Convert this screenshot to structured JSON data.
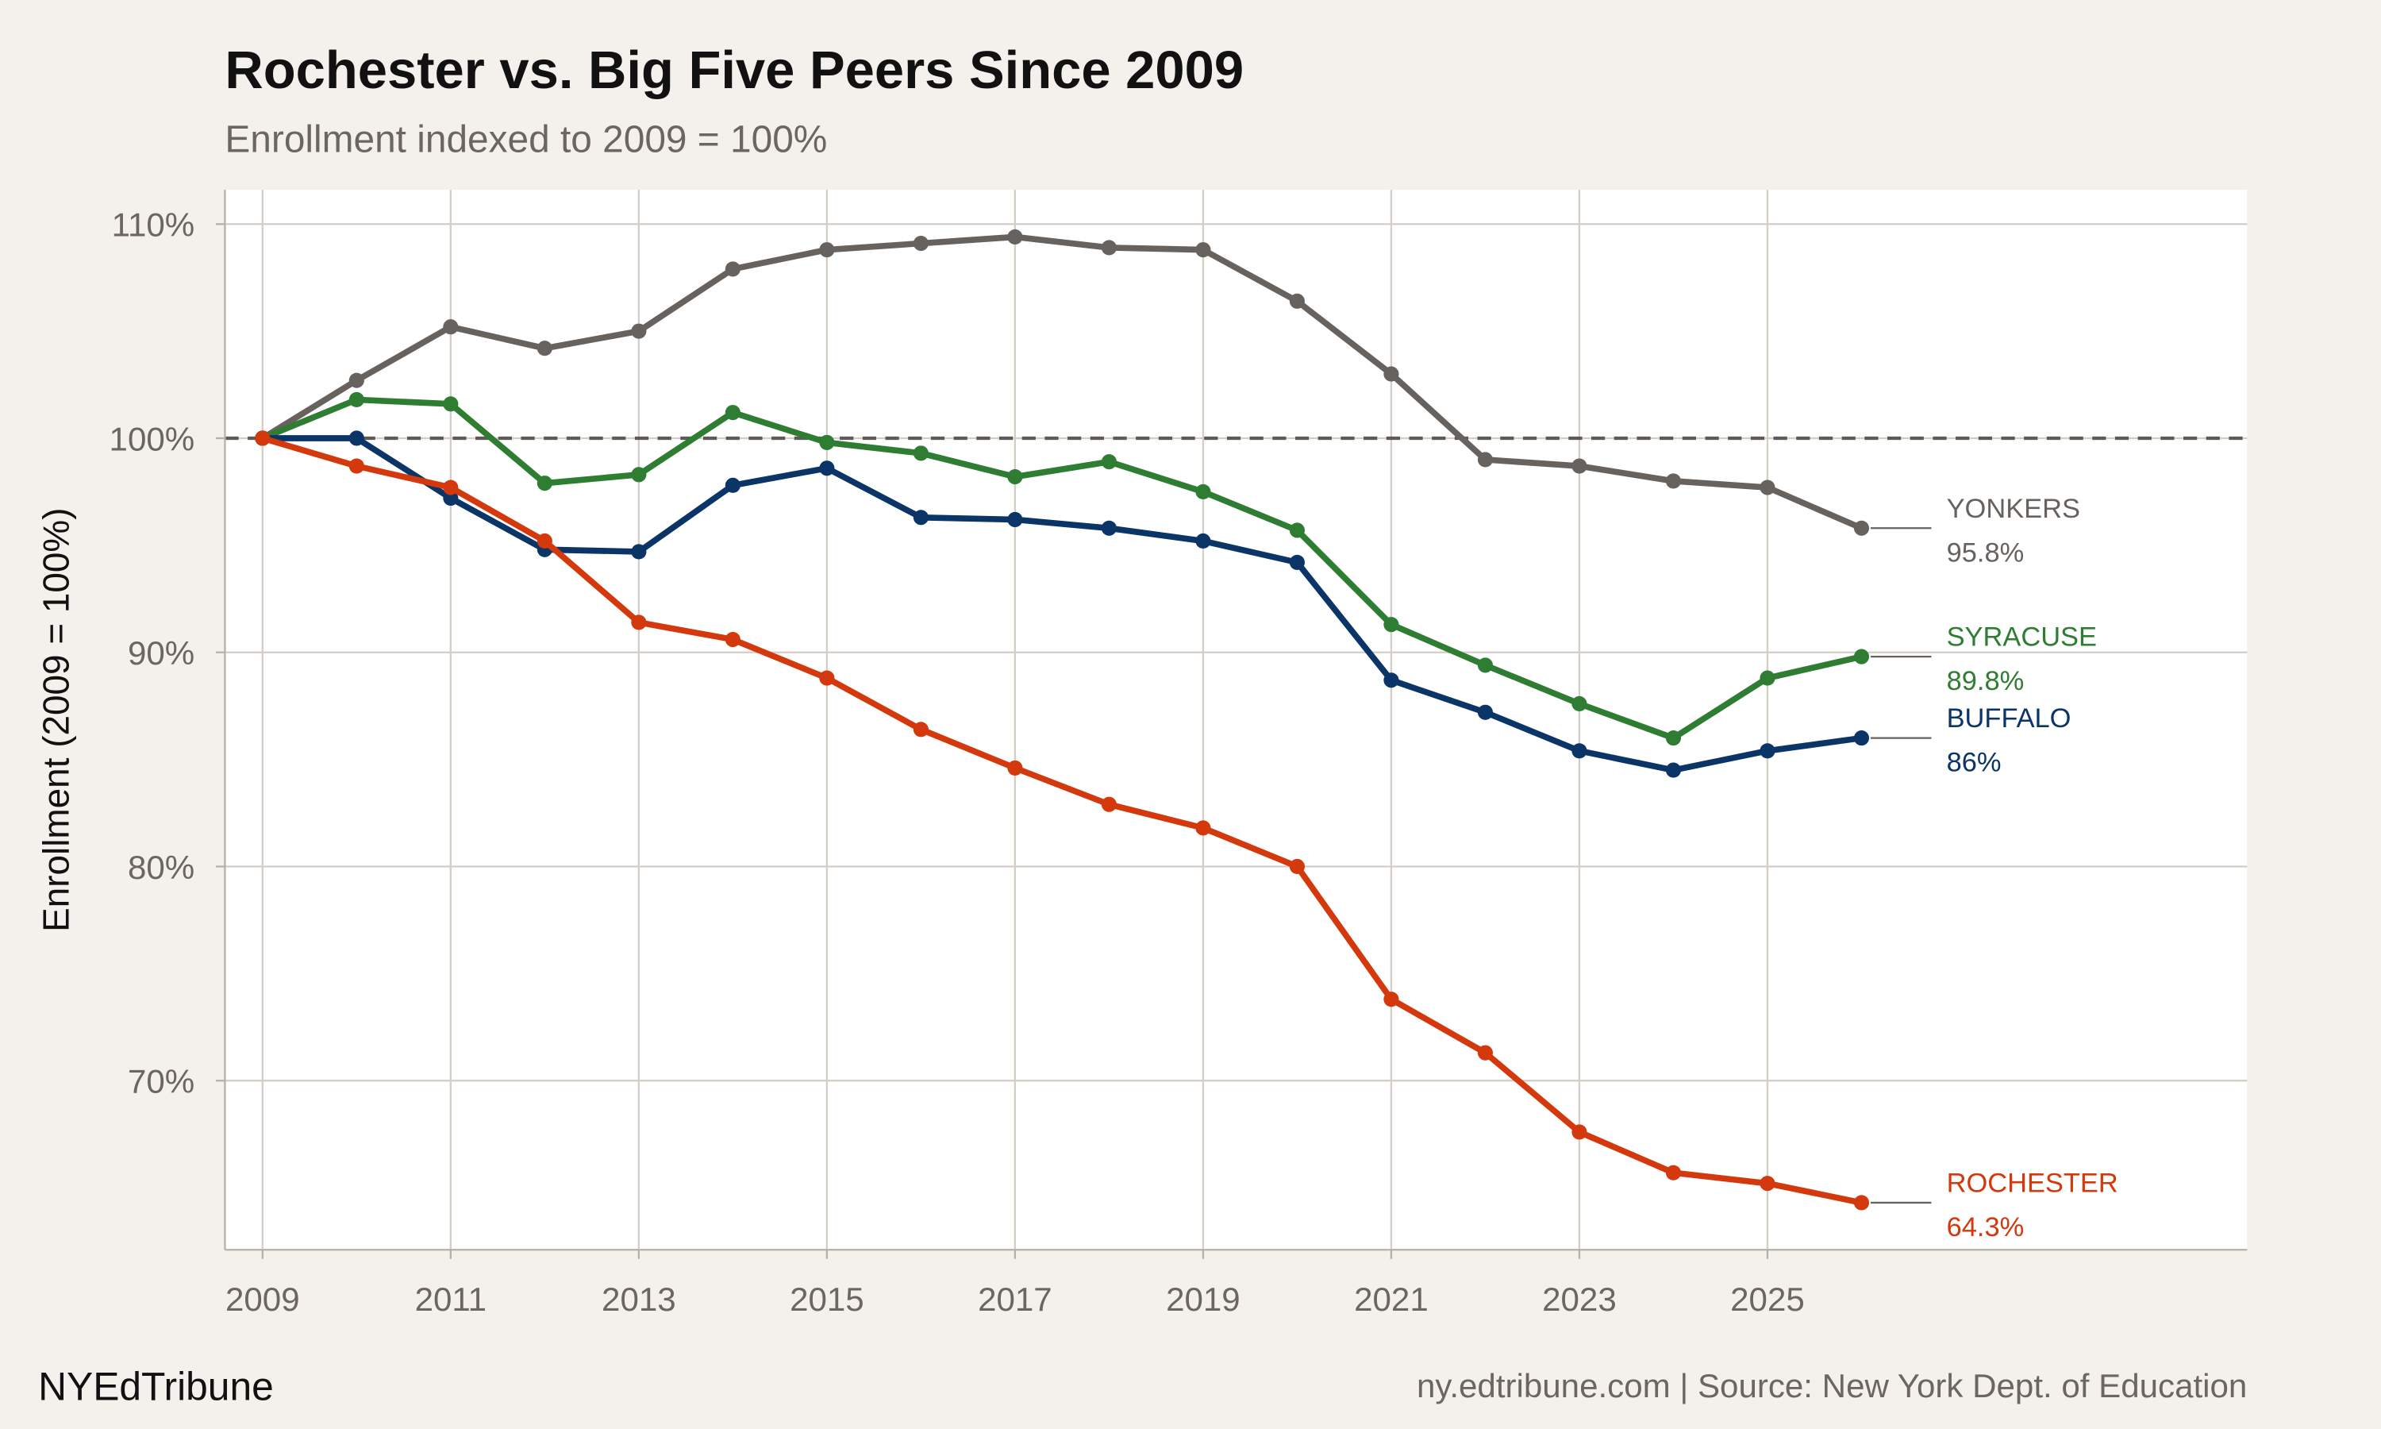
{
  "header": {
    "title": "Rochester vs. Big Five Peers Since 2009",
    "subtitle": "Enrollment indexed to 2009 = 100%"
  },
  "footer": {
    "brand": "NYEdTribune",
    "source": "ny.edtribune.com | Source: New York Dept. of Education"
  },
  "chart_data": {
    "type": "line",
    "title": "Rochester vs. Big Five Peers Since 2009",
    "subtitle": "Enrollment indexed to 2009 = 100%",
    "xlabel": "",
    "ylabel": "Enrollment (2009 = 100%)",
    "xlim": [
      2008.6,
      2030.1
    ],
    "ylim": [
      62.1,
      111.6
    ],
    "x_ticks": [
      "2009",
      "2011",
      "2013",
      "2015",
      "2017",
      "2019",
      "2021",
      "2023",
      "2025"
    ],
    "y_ticks": [
      "70%",
      "80%",
      "90%",
      "100%",
      "110%"
    ],
    "y_tick_values": [
      70,
      80,
      90,
      100,
      110
    ],
    "x_tick_values": [
      2009,
      2011,
      2013,
      2015,
      2017,
      2019,
      2021,
      2023,
      2025
    ],
    "grid": true,
    "reference_line": 100,
    "legend": "direct labels at line ends",
    "x": [
      2009,
      2010,
      2011,
      2012,
      2013,
      2014,
      2015,
      2016,
      2017,
      2018,
      2019,
      2020,
      2021,
      2022,
      2023,
      2024,
      2025,
      2026
    ],
    "series": [
      {
        "name": "YONKERS",
        "end_label": "95.8%",
        "color": "#67625e",
        "values": [
          100,
          102.7,
          105.2,
          104.2,
          105.0,
          107.9,
          108.8,
          109.1,
          109.4,
          108.9,
          108.8,
          106.4,
          103.0,
          99.0,
          98.7,
          98.0,
          97.7,
          95.8
        ]
      },
      {
        "name": "SYRACUSE",
        "end_label": "89.8%",
        "color": "#2e7d32",
        "values": [
          100,
          101.8,
          101.6,
          97.9,
          98.3,
          101.2,
          99.8,
          99.3,
          98.2,
          98.9,
          97.5,
          95.7,
          91.3,
          89.4,
          87.6,
          86.0,
          88.8,
          89.8
        ]
      },
      {
        "name": "BUFFALO",
        "end_label": "86%",
        "color": "#0b3467",
        "values": [
          100,
          100,
          97.2,
          94.8,
          94.7,
          97.8,
          98.6,
          96.3,
          96.2,
          95.8,
          95.2,
          94.2,
          88.7,
          87.2,
          85.4,
          84.5,
          85.4,
          86.0
        ]
      },
      {
        "name": "ROCHESTER",
        "end_label": "64.3%",
        "color": "#d4380d",
        "values": [
          100,
          98.7,
          97.7,
          95.2,
          91.4,
          90.6,
          88.8,
          86.4,
          84.6,
          82.9,
          81.8,
          80.0,
          73.8,
          71.3,
          67.6,
          65.7,
          65.2,
          64.3
        ]
      }
    ]
  }
}
